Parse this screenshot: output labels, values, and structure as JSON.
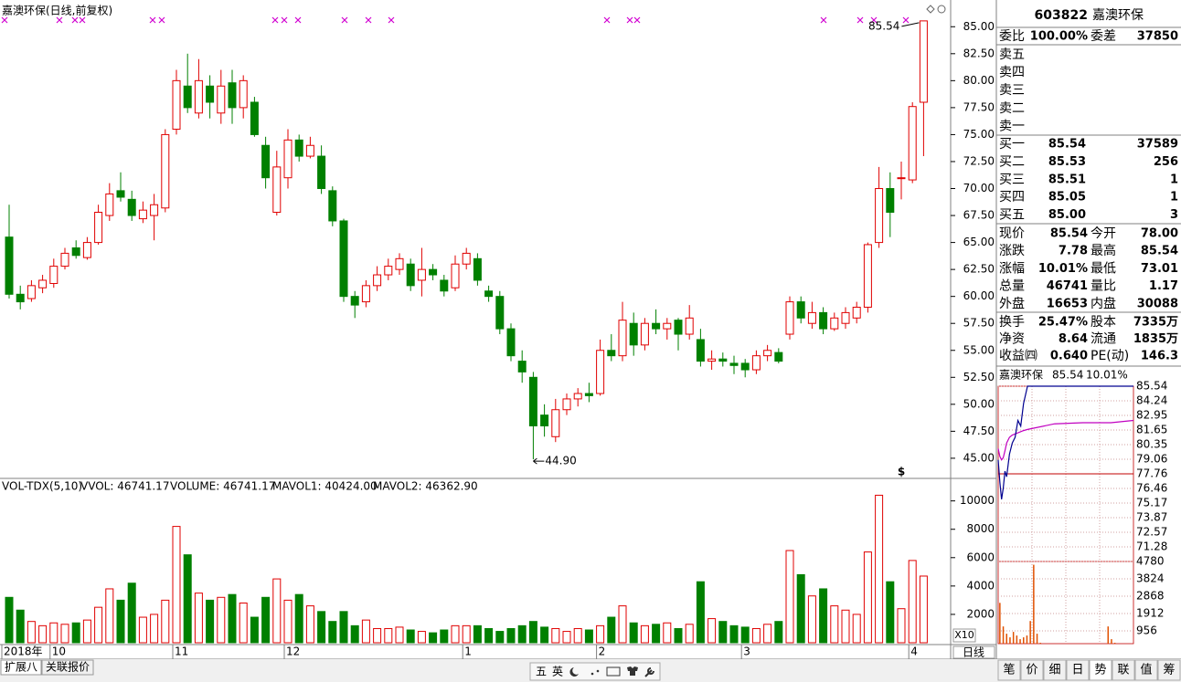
{
  "chart_data": [
    {
      "type": "candlestick",
      "title": "嘉澳环保(日线,前复权)",
      "categories": [
        "2018年",
        null,
        null,
        null,
        "10",
        null,
        null,
        null,
        null,
        null,
        null,
        null,
        null,
        null,
        null,
        "11",
        null,
        null,
        null,
        null,
        null,
        null,
        null,
        null,
        null,
        "12",
        null,
        null,
        null,
        null,
        null,
        null,
        null,
        null,
        null,
        null,
        null,
        null,
        null,
        null,
        null,
        "1",
        null,
        null,
        null,
        null,
        null,
        null,
        null,
        null,
        null,
        null,
        null,
        "2",
        null,
        null,
        null,
        null,
        null,
        null,
        null,
        null,
        null,
        null,
        null,
        null,
        "3",
        null,
        null,
        null,
        null,
        null,
        null,
        null,
        null,
        null,
        null,
        null,
        null,
        null,
        null,
        "4",
        null
      ],
      "open": [
        65.5,
        60.2,
        59.8,
        60.8,
        61.2,
        62.8,
        64.5,
        63.6,
        65.0,
        67.5,
        69.8,
        69.0,
        67.2,
        67.5,
        68.2,
        75.5,
        79.5,
        77.0,
        79.5,
        77.0,
        79.8,
        77.5,
        78.0,
        74.0,
        67.8,
        71.0,
        74.5,
        73.0,
        73.0,
        69.8,
        67.0,
        60.0,
        59.5,
        61.0,
        62.0,
        62.5,
        63.0,
        61.5,
        62.5,
        61.5,
        60.8,
        63.0,
        63.5,
        60.5,
        60.0,
        57.0,
        54.0,
        52.5,
        49.0,
        47.0,
        49.5,
        50.5,
        51.0,
        51.0,
        55.0,
        54.5,
        57.5,
        55.5,
        57.5,
        57.0,
        57.8,
        56.5,
        56.0,
        54.0,
        54.2,
        53.8,
        53.8,
        53.2,
        54.5,
        54.8,
        56.5,
        59.5,
        57.5,
        58.5,
        57.0,
        57.5,
        58.0,
        59.0,
        65.0,
        70.0,
        71.0,
        70.8,
        78.0
      ],
      "close": [
        60.2,
        59.5,
        61.0,
        61.5,
        62.8,
        64.0,
        63.8,
        65.0,
        67.8,
        69.5,
        69.2,
        67.5,
        68.0,
        68.5,
        75.0,
        80.0,
        77.5,
        80.0,
        78.0,
        79.5,
        77.5,
        80.0,
        75.0,
        71.0,
        72.0,
        74.5,
        73.0,
        74.0,
        70.0,
        67.0,
        60.0,
        59.2,
        61.0,
        62.0,
        62.8,
        63.5,
        61.0,
        62.5,
        62.0,
        60.5,
        63.0,
        64.0,
        61.5,
        60.0,
        57.0,
        54.5,
        53.0,
        48.0,
        48.0,
        49.5,
        50.5,
        51.0,
        50.8,
        55.0,
        54.5,
        57.8,
        55.5,
        57.5,
        57.0,
        57.5,
        56.5,
        58.0,
        54.0,
        54.2,
        54.0,
        53.6,
        53.2,
        54.5,
        55.0,
        54.0,
        59.5,
        58.0,
        58.5,
        57.0,
        58.0,
        58.5,
        59.0,
        64.8,
        70.0,
        67.8,
        71.0,
        77.6,
        85.54
      ],
      "high": [
        68.5,
        61.0,
        61.5,
        62.0,
        63.5,
        64.5,
        65.2,
        65.5,
        68.5,
        70.5,
        71.5,
        69.8,
        68.8,
        69.5,
        75.5,
        81.0,
        82.5,
        82.0,
        80.5,
        81.0,
        81.0,
        80.5,
        78.5,
        74.8,
        73.5,
        75.5,
        75.0,
        74.8,
        74.0,
        70.2,
        67.2,
        60.5,
        61.5,
        62.8,
        63.5,
        64.0,
        63.5,
        64.5,
        63.0,
        62.0,
        63.8,
        64.5,
        64.0,
        61.0,
        60.5,
        57.5,
        55.0,
        53.0,
        50.0,
        50.5,
        51.0,
        51.5,
        52.0,
        56.0,
        56.5,
        59.5,
        58.5,
        58.0,
        58.8,
        58.0,
        58.0,
        59.2,
        57.0,
        55.0,
        54.8,
        54.5,
        54.2,
        55.0,
        55.5,
        55.2,
        60.0,
        60.0,
        59.5,
        59.0,
        58.5,
        59.0,
        59.5,
        65.0,
        72.0,
        71.5,
        72.5,
        78.0,
        85.54
      ],
      "low": [
        59.8,
        58.8,
        59.5,
        60.3,
        60.8,
        62.5,
        63.5,
        63.4,
        64.8,
        67.0,
        68.8,
        67.0,
        66.8,
        65.2,
        67.8,
        75.0,
        77.0,
        76.5,
        76.5,
        76.0,
        76.0,
        76.5,
        74.8,
        70.0,
        67.5,
        70.0,
        72.5,
        72.8,
        69.5,
        66.5,
        59.5,
        58.0,
        59.0,
        60.5,
        61.5,
        62.0,
        60.5,
        60.0,
        61.5,
        60.0,
        60.5,
        62.5,
        61.0,
        59.5,
        56.5,
        54.0,
        52.0,
        44.9,
        47.0,
        46.5,
        49.0,
        49.8,
        50.2,
        50.8,
        54.0,
        54.0,
        54.5,
        55.0,
        56.5,
        56.0,
        55.0,
        56.0,
        53.5,
        53.2,
        53.5,
        52.8,
        52.5,
        52.8,
        54.0,
        53.8,
        56.0,
        57.5,
        57.0,
        56.5,
        56.8,
        57.0,
        57.5,
        58.5,
        64.5,
        65.5,
        69.0,
        70.5,
        73.01
      ],
      "up_color": "#e00000",
      "down_color": "#008000",
      "ylim": [
        43.3,
        86.8
      ],
      "yticks": [
        {
          "value": 45,
          "label": "45.00"
        },
        {
          "value": 47.5,
          "label": "47.50"
        },
        {
          "value": 50,
          "label": "50.00"
        },
        {
          "value": 52.5,
          "label": "52.50"
        },
        {
          "value": 55,
          "label": "55.00"
        },
        {
          "value": 57.5,
          "label": "57.50"
        },
        {
          "value": 60,
          "label": "60.00"
        },
        {
          "value": 62.5,
          "label": "62.50"
        },
        {
          "value": 65,
          "label": "65.00"
        },
        {
          "value": 67.5,
          "label": "67.50"
        },
        {
          "value": 70,
          "label": "70.00"
        },
        {
          "value": 72.5,
          "label": "72.50"
        },
        {
          "value": 75,
          "label": "75.00"
        },
        {
          "value": 77.5,
          "label": "77.50"
        },
        {
          "value": 80,
          "label": "80.00"
        },
        {
          "value": 82.5,
          "label": "82.50"
        },
        {
          "value": 85,
          "label": "85.00"
        }
      ],
      "high_label": "85.54",
      "low_label": "44.90",
      "signal": "$"
    },
    {
      "type": "bar",
      "indicator": "VOL-TDX(5,10)",
      "legend": [
        "VVOL: 46741.17",
        "VOLUME: 46741.17",
        "MAVOL1: 40424.00",
        "MAVOL2: 46362.90"
      ],
      "legend_colors": [
        "#000000",
        "#d000d0",
        "#d000d0",
        "#808080"
      ],
      "values": [
        3200,
        2300,
        1500,
        1200,
        1400,
        1300,
        1400,
        1600,
        2500,
        3800,
        3000,
        4200,
        1800,
        2000,
        3000,
        8200,
        6200,
        3500,
        3000,
        3200,
        3400,
        2800,
        1800,
        3200,
        4500,
        3000,
        3400,
        2600,
        2200,
        1500,
        2200,
        1200,
        1600,
        1000,
        1000,
        1100,
        900,
        800,
        700,
        900,
        1200,
        1200,
        1200,
        1000,
        800,
        1000,
        1200,
        1500,
        1100,
        1000,
        800,
        1000,
        900,
        1200,
        1800,
        2600,
        1400,
        1200,
        1300,
        1400,
        1000,
        1300,
        4300,
        1700,
        1500,
        1200,
        1100,
        1000,
        1300,
        1500,
        6500,
        4800,
        3300,
        3800,
        2600,
        2300,
        2000,
        6400,
        10400,
        4300,
        2400,
        5800,
        4700
      ],
      "ylim": [
        0,
        11200
      ],
      "yticks": [
        2000,
        4000,
        6000,
        8000,
        10000
      ],
      "scale_label": "X10"
    },
    {
      "type": "line",
      "title": "嘉澳环保",
      "price_label": "85.54",
      "change_label": "10.01%",
      "x": [
        0,
        3,
        6,
        9,
        12,
        15,
        20,
        25,
        30,
        35,
        40,
        45,
        52,
        100,
        150,
        200,
        240
      ],
      "series": [
        {
          "color": "#000090",
          "values": [
            79.0,
            77.0,
            75.5,
            76.5,
            78.0,
            77.5,
            79.5,
            80.5,
            81.0,
            82.5,
            82.0,
            84.0,
            85.54,
            85.54,
            85.54,
            85.54,
            85.54
          ]
        },
        {
          "color": "#c000c0",
          "values": [
            80.0,
            79.3,
            79.0,
            79.2,
            79.8,
            80.5,
            81.0,
            81.2,
            81.3,
            81.4,
            81.5,
            81.6,
            81.7,
            82.2,
            82.3,
            82.3,
            82.5
          ]
        }
      ],
      "xlim": [
        0,
        240
      ],
      "ylim": [
        69.98,
        85.54
      ],
      "yticks": [
        85.54,
        84.24,
        82.95,
        81.65,
        80.35,
        79.06,
        77.76,
        76.46,
        75.17,
        73.87,
        72.57,
        71.28
      ]
    },
    {
      "type": "bar",
      "color": "#e05000",
      "values": [
        2500,
        1200,
        800,
        600,
        900,
        700,
        500,
        600,
        700,
        1500,
        4600,
        800,
        300,
        200,
        150,
        100,
        100,
        80,
        100,
        80,
        60,
        80,
        100,
        90,
        80,
        60,
        70,
        60,
        100,
        80,
        60,
        50,
        1200,
        500,
        300,
        200,
        150,
        100,
        80,
        60
      ],
      "ylim": [
        0,
        4780
      ],
      "yticks": [
        956,
        1912,
        2868,
        3824,
        4780
      ]
    }
  ],
  "quote_panel": {
    "code": "603822",
    "name": "嘉澳环保",
    "wb": [
      "委比",
      "100.00%",
      "委差",
      "37850"
    ],
    "asks": [
      "卖五",
      "卖四",
      "卖三",
      "卖二",
      "卖一"
    ],
    "bids": [
      [
        "买一",
        "85.54",
        "37589"
      ],
      [
        "买二",
        "85.53",
        "256"
      ],
      [
        "买三",
        "85.51",
        "1"
      ],
      [
        "买四",
        "85.05",
        "1"
      ],
      [
        "买五",
        "85.00",
        "3"
      ]
    ],
    "stats": [
      [
        "现价",
        "85.54",
        "今开",
        "78.00"
      ],
      [
        "涨跌",
        "7.78",
        "最高",
        "85.54"
      ],
      [
        "涨幅",
        "10.01%",
        "最低",
        "73.01"
      ],
      [
        "总量",
        "46741",
        "量比",
        "1.17"
      ],
      [
        "外盘",
        "16653",
        "内盘",
        "30088"
      ]
    ],
    "stat_colors": [
      [
        "#e00000",
        "#e00000"
      ],
      [
        "#e00000",
        "#e00000"
      ],
      [
        "#e00000",
        "#008000"
      ],
      [
        "#b04000",
        "#e00000"
      ],
      [
        "#e00000",
        "#008000"
      ]
    ],
    "fund": [
      [
        "换手",
        "25.47%",
        "股本",
        "7335万"
      ],
      [
        "净资",
        "8.64",
        "流通",
        "1835万"
      ],
      [
        "收益㈣",
        "0.640",
        "PE(动)",
        "146.3"
      ]
    ]
  },
  "ui": {
    "period_button": "日线",
    "bottom_tabs": [
      "扩展八",
      "关联报价"
    ],
    "ime": [
      "五",
      "英"
    ],
    "right_tabs": [
      "笔",
      "价",
      "细",
      "日",
      "势",
      "联",
      "值",
      "筹"
    ]
  }
}
